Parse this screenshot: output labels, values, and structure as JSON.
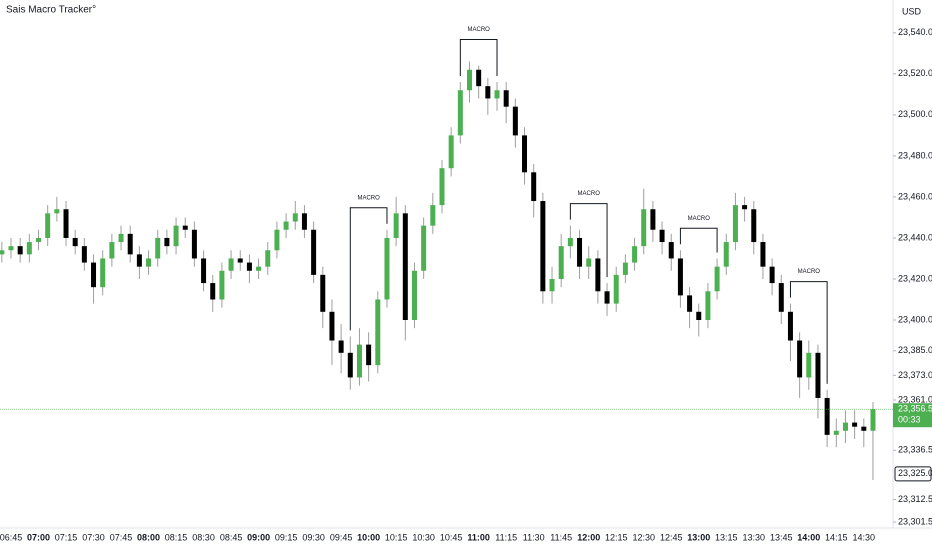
{
  "chart_data": {
    "type": "candlestick",
    "title": "Sais Macro Tracker°",
    "currency": "USD",
    "up_color": "#4caf50",
    "down_color": "#000000",
    "categories": [
      null,
      "06:45",
      null,
      null,
      "07:00",
      null,
      null,
      "07:15",
      null,
      null,
      "07:30",
      null,
      null,
      "07:45",
      null,
      null,
      "08:00",
      null,
      null,
      "08:15",
      null,
      null,
      "08:30",
      null,
      null,
      "08:45",
      null,
      null,
      "09:00",
      null,
      null,
      "09:15",
      null,
      null,
      "09:30",
      null,
      null,
      "09:45",
      null,
      null,
      "10:00",
      null,
      null,
      "10:15",
      null,
      null,
      "10:30",
      null,
      null,
      "10:45",
      null,
      null,
      "11:00",
      null,
      null,
      "11:15",
      null,
      null,
      "11:30",
      null,
      null,
      "11:45",
      null,
      null,
      "12:00",
      null,
      null,
      "12:15",
      null,
      null,
      "12:30",
      null,
      null,
      "12:45",
      null,
      null,
      "13:00",
      null,
      null,
      "13:15",
      null,
      null,
      "13:30",
      null,
      null,
      "13:45",
      null,
      null,
      "14:00",
      null,
      null,
      "14:15",
      null,
      null,
      "14:30",
      null
    ],
    "open": [
      23432,
      23434,
      23436,
      23432,
      23438,
      23440,
      23452,
      23454,
      23440,
      23436,
      23428,
      23416,
      23430,
      23438,
      23442,
      23432,
      23426,
      23430,
      23440,
      23436,
      23446,
      23444,
      23430,
      23418,
      23410,
      23424,
      23430,
      23428,
      23424,
      23426,
      23434,
      23444,
      23448,
      23452,
      23444,
      23422,
      23404,
      23390,
      23384,
      23372,
      23388,
      23378,
      23410,
      23440,
      23452,
      23400,
      23424,
      23446,
      23456,
      23474,
      23490,
      23512,
      23522,
      23514,
      23508,
      23512,
      23504,
      23490,
      23472,
      23458,
      23414,
      23420,
      23436,
      23440,
      23426,
      23430,
      23414,
      23408,
      23422,
      23428,
      23436,
      23454,
      23444,
      23438,
      23430,
      23412,
      23404,
      23400,
      23414,
      23426,
      23438,
      23456,
      23454,
      23438,
      23426,
      23418,
      23404,
      23390,
      23372,
      23384,
      23362,
      23344,
      23346,
      23350,
      23348,
      23346
    ],
    "high": [
      23438,
      23440,
      23440,
      23442,
      23444,
      23456,
      23460,
      23458,
      23444,
      23440,
      23432,
      23434,
      23442,
      23446,
      23446,
      23436,
      23434,
      23444,
      23444,
      23450,
      23450,
      23448,
      23434,
      23422,
      23428,
      23434,
      23434,
      23432,
      23430,
      23438,
      23448,
      23452,
      23458,
      23456,
      23448,
      23426,
      23410,
      23398,
      23392,
      23396,
      23394,
      23414,
      23444,
      23460,
      23456,
      23428,
      23450,
      23462,
      23478,
      23494,
      23516,
      23526,
      23524,
      23518,
      23516,
      23516,
      23508,
      23494,
      23476,
      23462,
      23426,
      23442,
      23446,
      23444,
      23436,
      23434,
      23418,
      23426,
      23432,
      23440,
      23464,
      23458,
      23448,
      23442,
      23434,
      23416,
      23408,
      23418,
      23430,
      23442,
      23462,
      23460,
      23458,
      23442,
      23430,
      23422,
      23408,
      23394,
      23390,
      23388,
      23366,
      23352,
      23356,
      23356,
      23352,
      23360
    ],
    "low": [
      23428,
      23430,
      23428,
      23428,
      23434,
      23436,
      23448,
      23436,
      23432,
      23424,
      23408,
      23412,
      23426,
      23434,
      23428,
      23420,
      23422,
      23426,
      23432,
      23432,
      23440,
      23426,
      23414,
      23404,
      23406,
      23420,
      23424,
      23418,
      23420,
      23422,
      23430,
      23440,
      23444,
      23440,
      23418,
      23396,
      23378,
      23374,
      23366,
      23368,
      23370,
      23374,
      23406,
      23436,
      23390,
      23396,
      23420,
      23442,
      23452,
      23470,
      23486,
      23506,
      23508,
      23500,
      23502,
      23496,
      23484,
      23466,
      23450,
      23408,
      23408,
      23416,
      23430,
      23420,
      23420,
      23408,
      23402,
      23404,
      23418,
      23424,
      23432,
      23438,
      23432,
      23424,
      23406,
      23396,
      23392,
      23396,
      23410,
      23422,
      23434,
      23448,
      23432,
      23420,
      23412,
      23398,
      23380,
      23362,
      23366,
      23352,
      23338,
      23338,
      23340,
      23342,
      23338,
      23322
    ],
    "close": [
      23434,
      23436,
      23432,
      23438,
      23440,
      23452,
      23454,
      23440,
      23436,
      23428,
      23416,
      23430,
      23438,
      23442,
      23432,
      23426,
      23430,
      23440,
      23436,
      23446,
      23444,
      23430,
      23418,
      23410,
      23424,
      23430,
      23428,
      23424,
      23426,
      23434,
      23444,
      23448,
      23452,
      23444,
      23422,
      23404,
      23390,
      23384,
      23372,
      23388,
      23378,
      23410,
      23440,
      23452,
      23400,
      23424,
      23446,
      23456,
      23474,
      23490,
      23512,
      23522,
      23514,
      23508,
      23512,
      23504,
      23490,
      23472,
      23458,
      23414,
      23420,
      23436,
      23440,
      23426,
      23430,
      23414,
      23408,
      23422,
      23428,
      23436,
      23454,
      23444,
      23438,
      23430,
      23412,
      23404,
      23400,
      23414,
      23426,
      23438,
      23456,
      23454,
      23438,
      23426,
      23418,
      23404,
      23390,
      23372,
      23384,
      23362,
      23344,
      23346,
      23350,
      23348,
      23346,
      23356.5
    ],
    "ylim": [
      23298.6,
      23556
    ],
    "yticks": [
      {
        "value": 23540,
        "label": "23,540.00"
      },
      {
        "value": 23520,
        "label": "23,520.00"
      },
      {
        "value": 23500,
        "label": "23,500.00"
      },
      {
        "value": 23480,
        "label": "23,480.00"
      },
      {
        "value": 23460,
        "label": "23,460.00"
      },
      {
        "value": 23440,
        "label": "23,440.00"
      },
      {
        "value": 23420,
        "label": "23,420.00"
      },
      {
        "value": 23400,
        "label": "23,400.00"
      },
      {
        "value": 23385,
        "label": "23,385.00"
      },
      {
        "value": 23373,
        "label": "23,373.00"
      },
      {
        "value": 23361,
        "label": "23,361.00"
      },
      {
        "value": 23336.5,
        "label": "23,336.50"
      },
      {
        "value": 23312.5,
        "label": "23,312.50"
      },
      {
        "value": 23301.5,
        "label": "23,301.50"
      }
    ],
    "price_labels": [
      {
        "value": 23356.5,
        "label": "23,356.50",
        "sublabel": "00:33"
      },
      {
        "value": 23325,
        "label": "23,325.00"
      }
    ],
    "annotations": [
      "MACRO",
      "MACRO",
      "MACRO",
      "MACRO",
      "MACRO"
    ]
  }
}
